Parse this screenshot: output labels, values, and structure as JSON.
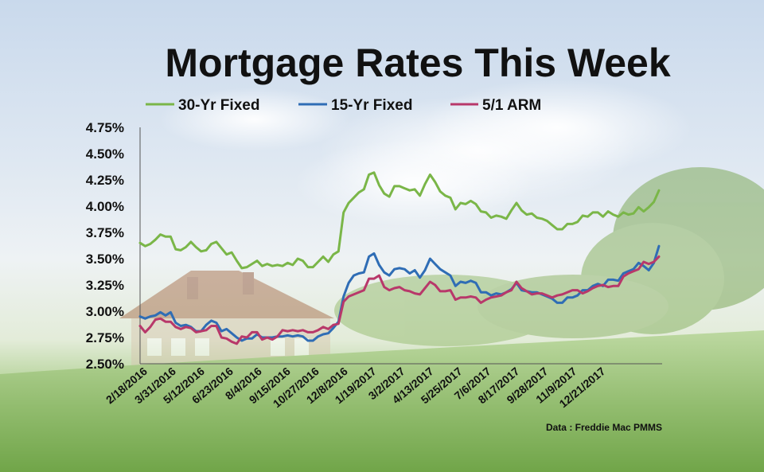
{
  "colors": {
    "fixed30": "#7ab648",
    "fixed15": "#2f6db5",
    "arm51": "#b8386a",
    "axis": "#555555"
  },
  "chart_data": {
    "type": "line",
    "title": "Mortgage Rates This Week",
    "source": "Data : Freddie  Mac PMMS",
    "legend_position": "top",
    "grid": false,
    "ylim": [
      2.5,
      4.75
    ],
    "yticks": [
      2.5,
      2.75,
      3.0,
      3.25,
      3.5,
      3.75,
      4.0,
      4.25,
      4.5,
      4.75
    ],
    "ytick_labels": [
      "2.50%",
      "2.75%",
      "3.00%",
      "3.25%",
      "3.50%",
      "3.75%",
      "4.00%",
      "4.25%",
      "4.50%",
      "4.75%"
    ],
    "xtick_labels": [
      "2/18/2016",
      "3/31/2016",
      "5/12/2016",
      "6/23/2016",
      "8/4/2016",
      "9/15/2016",
      "10/27/2016",
      "12/8/2016",
      "1/19/2017",
      "3/2/2017",
      "4/13/2017",
      "5/25/2017",
      "7/6/2017",
      "8/17/2017",
      "9/28/2017",
      "11/9/2017",
      "12/21/2017"
    ],
    "series": [
      {
        "name": "30-Yr Fixed",
        "color_key": "fixed30",
        "values": [
          3.65,
          3.62,
          3.64,
          3.68,
          3.73,
          3.71,
          3.71,
          3.59,
          3.58,
          3.61,
          3.66,
          3.61,
          3.57,
          3.58,
          3.64,
          3.66,
          3.6,
          3.54,
          3.56,
          3.48,
          3.41,
          3.42,
          3.45,
          3.48,
          3.43,
          3.45,
          3.43,
          3.44,
          3.43,
          3.46,
          3.44,
          3.5,
          3.48,
          3.42,
          3.42,
          3.47,
          3.52,
          3.47,
          3.54,
          3.57,
          3.94,
          4.03,
          4.08,
          4.13,
          4.16,
          4.3,
          4.32,
          4.2,
          4.12,
          4.09,
          4.19,
          4.19,
          4.17,
          4.15,
          4.16,
          4.1,
          4.21,
          4.3,
          4.23,
          4.14,
          4.1,
          4.08,
          3.97,
          4.03,
          4.02,
          4.05,
          4.02,
          3.95,
          3.94,
          3.89,
          3.91,
          3.9,
          3.88,
          3.96,
          4.03,
          3.96,
          3.92,
          3.93,
          3.89,
          3.88,
          3.86,
          3.82,
          3.78,
          3.78,
          3.83,
          3.83,
          3.85,
          3.91,
          3.9,
          3.94,
          3.94,
          3.9,
          3.95,
          3.92,
          3.9,
          3.94,
          3.92,
          3.93,
          3.99,
          3.95,
          3.99,
          4.04,
          4.15
        ]
      },
      {
        "name": "15-Yr Fixed",
        "color_key": "fixed15",
        "values": [
          2.95,
          2.93,
          2.95,
          2.96,
          2.99,
          2.96,
          2.99,
          2.89,
          2.86,
          2.87,
          2.85,
          2.81,
          2.81,
          2.87,
          2.91,
          2.89,
          2.81,
          2.83,
          2.79,
          2.75,
          2.72,
          2.74,
          2.74,
          2.78,
          2.75,
          2.75,
          2.75,
          2.76,
          2.76,
          2.77,
          2.76,
          2.77,
          2.76,
          2.72,
          2.72,
          2.76,
          2.78,
          2.79,
          2.84,
          2.9,
          3.14,
          3.27,
          3.34,
          3.36,
          3.37,
          3.52,
          3.55,
          3.44,
          3.37,
          3.34,
          3.4,
          3.41,
          3.4,
          3.36,
          3.39,
          3.32,
          3.39,
          3.5,
          3.45,
          3.4,
          3.37,
          3.34,
          3.24,
          3.28,
          3.27,
          3.29,
          3.27,
          3.18,
          3.18,
          3.15,
          3.17,
          3.16,
          3.18,
          3.21,
          3.27,
          3.2,
          3.19,
          3.18,
          3.18,
          3.16,
          3.14,
          3.12,
          3.08,
          3.08,
          3.13,
          3.13,
          3.15,
          3.2,
          3.2,
          3.24,
          3.26,
          3.24,
          3.3,
          3.3,
          3.29,
          3.36,
          3.38,
          3.4,
          3.46,
          3.43,
          3.39,
          3.46,
          3.62
        ]
      },
      {
        "name": "5/1 ARM",
        "color_key": "arm51",
        "values": [
          2.86,
          2.8,
          2.85,
          2.92,
          2.93,
          2.9,
          2.9,
          2.85,
          2.83,
          2.85,
          2.84,
          2.8,
          2.81,
          2.82,
          2.86,
          2.86,
          2.75,
          2.74,
          2.71,
          2.69,
          2.76,
          2.75,
          2.8,
          2.8,
          2.73,
          2.75,
          2.73,
          2.76,
          2.82,
          2.81,
          2.82,
          2.81,
          2.82,
          2.8,
          2.8,
          2.82,
          2.85,
          2.83,
          2.87,
          2.88,
          3.09,
          3.14,
          3.16,
          3.18,
          3.2,
          3.31,
          3.31,
          3.34,
          3.23,
          3.2,
          3.22,
          3.23,
          3.2,
          3.19,
          3.17,
          3.16,
          3.22,
          3.28,
          3.25,
          3.19,
          3.19,
          3.2,
          3.11,
          3.13,
          3.13,
          3.14,
          3.13,
          3.08,
          3.11,
          3.13,
          3.14,
          3.15,
          3.18,
          3.2,
          3.28,
          3.22,
          3.19,
          3.16,
          3.17,
          3.17,
          3.15,
          3.13,
          3.15,
          3.16,
          3.18,
          3.2,
          3.2,
          3.17,
          3.19,
          3.22,
          3.24,
          3.25,
          3.23,
          3.24,
          3.24,
          3.33,
          3.36,
          3.38,
          3.4,
          3.47,
          3.45,
          3.47,
          3.52
        ]
      }
    ]
  }
}
